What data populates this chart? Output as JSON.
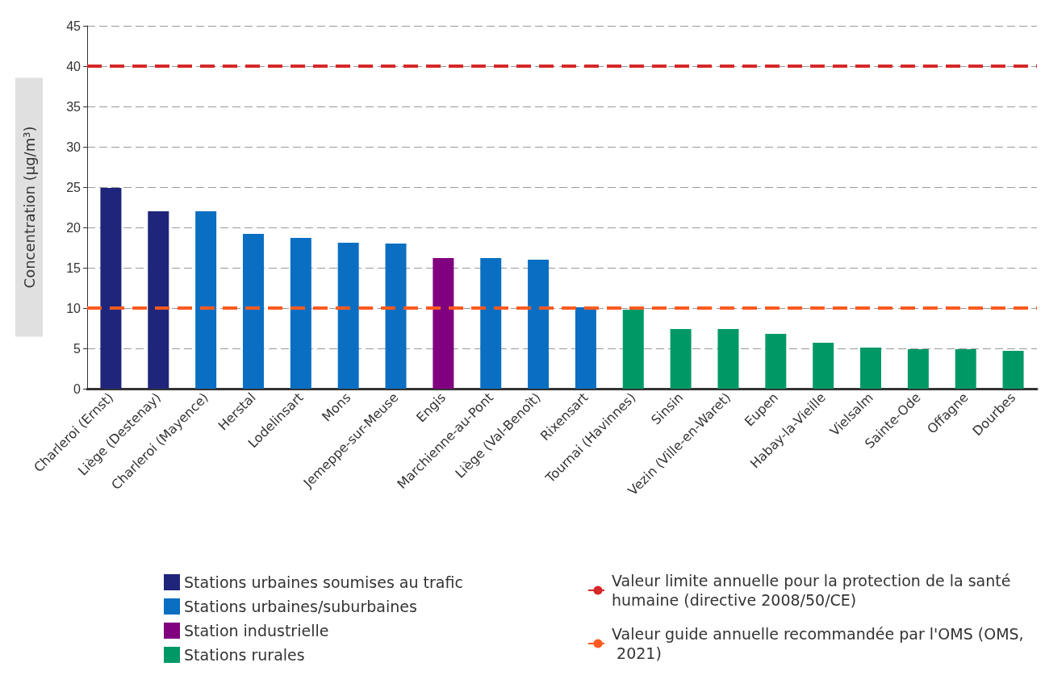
{
  "chart_data": {
    "type": "bar",
    "ylabel": "Concentration (µg/m³)",
    "categories": [
      "Charleroi (Ernst)",
      "Liège (Destenay)",
      "Charleroi (Mayence)",
      "Herstal",
      "Lodelinsart",
      "Mons",
      "Jemeppe-sur-Meuse",
      "Engis",
      "Marchienne-au-Pont",
      "Liège (Val-Benoît)",
      "Rixensart",
      "Tournai (Havinnes)",
      "Sinsin",
      "Vezin (Ville-en-Waret)",
      "Eupen",
      "Habay-la-Vieille",
      "Vielsalm",
      "Sainte-Ode",
      "Offagne",
      "Dourbes"
    ],
    "series": [
      {
        "name": "Stations urbaines soumises au trafic",
        "color": "#1f257a",
        "values": [
          24.9,
          22.0,
          null,
          null,
          null,
          null,
          null,
          null,
          null,
          null,
          null,
          null,
          null,
          null,
          null,
          null,
          null,
          null,
          null,
          null
        ]
      },
      {
        "name": "Stations urbaines/suburbaines",
        "color": "#0a6fc2",
        "values": [
          null,
          null,
          22.0,
          19.2,
          18.7,
          18.1,
          18.0,
          null,
          16.2,
          16.0,
          10.1,
          null,
          null,
          null,
          null,
          null,
          null,
          null,
          null,
          null
        ]
      },
      {
        "name": "Station industrielle",
        "color": "#800080",
        "values": [
          null,
          null,
          null,
          null,
          null,
          null,
          null,
          16.2,
          null,
          null,
          null,
          null,
          null,
          null,
          null,
          null,
          null,
          null,
          null,
          null
        ]
      },
      {
        "name": "Stations rurales",
        "color": "#009966",
        "values": [
          null,
          null,
          null,
          null,
          null,
          null,
          null,
          null,
          null,
          null,
          null,
          9.8,
          7.4,
          7.4,
          6.8,
          5.7,
          5.1,
          4.9,
          4.9,
          4.7
        ]
      }
    ],
    "ref_lines": [
      {
        "axis": "y",
        "value": 40,
        "label": "Valeur limite annuelle pour la protection de la santé humaine (directive 2008/50/CE)",
        "color": "#d62828",
        "line_style": "dashed"
      },
      {
        "axis": "y",
        "value": 10,
        "label": "Valeur guide annuelle recommandée par l'OMS (OMS, 2021)",
        "color": "#ff5a1f",
        "line_style": "dashed"
      }
    ],
    "ylim": [
      0,
      45
    ],
    "yticks": [
      0,
      5,
      10,
      15,
      20,
      25,
      30,
      35,
      40,
      45
    ],
    "grid": "y",
    "legend": "bottom"
  }
}
